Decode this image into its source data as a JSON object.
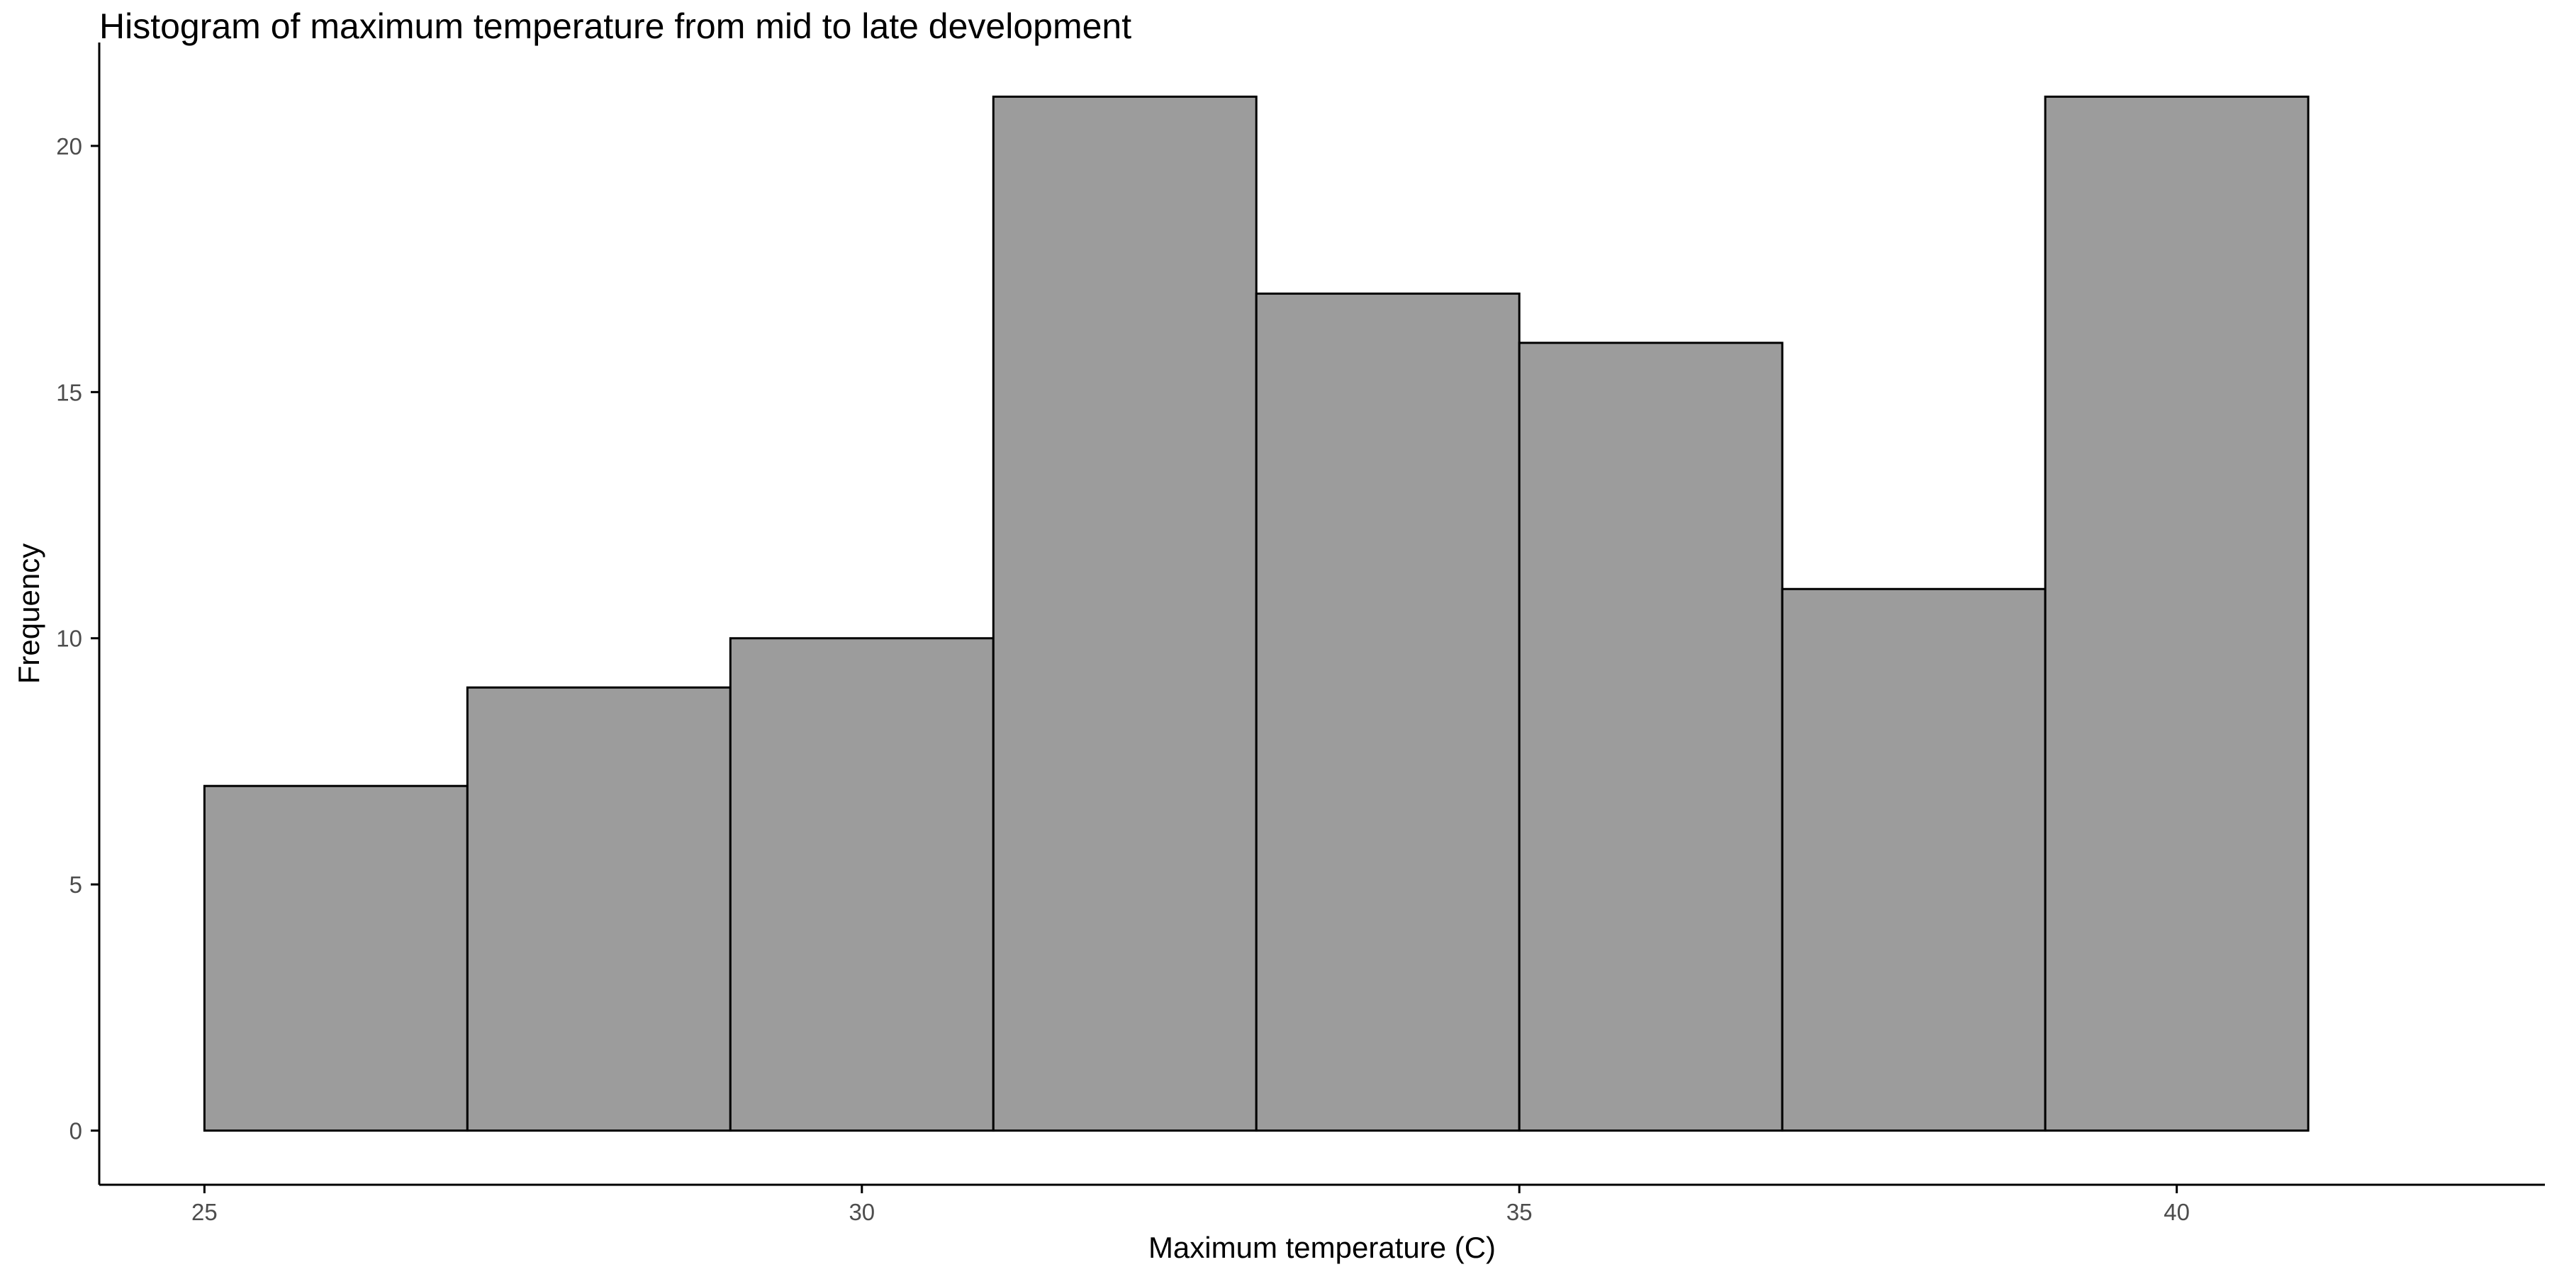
{
  "chart_data": {
    "type": "bar",
    "title": "Histogram of maximum temperature from mid to late development",
    "xlabel": "Maximum temperature (C)",
    "ylabel": "Frequency",
    "bins": [
      {
        "x0": 25,
        "x1": 27,
        "count": 7
      },
      {
        "x0": 27,
        "x1": 29,
        "count": 9
      },
      {
        "x0": 29,
        "x1": 31,
        "count": 10
      },
      {
        "x0": 31,
        "x1": 33,
        "count": 21
      },
      {
        "x0": 33,
        "x1": 35,
        "count": 17
      },
      {
        "x0": 35,
        "x1": 37,
        "count": 16
      },
      {
        "x0": 37,
        "x1": 39,
        "count": 11
      },
      {
        "x0": 39,
        "x1": 41,
        "count": 21
      }
    ],
    "x_ticks": [
      25,
      30,
      35,
      40
    ],
    "y_ticks": [
      0,
      5,
      10,
      15,
      20
    ],
    "xlim": [
      24.2,
      42.8
    ],
    "ylim": [
      -1.1,
      22.1
    ],
    "grid": false,
    "colors": {
      "bar_fill": "#9c9c9c",
      "bar_stroke": "#000000",
      "axis": "#000000",
      "tick_label": "#4d4d4d"
    }
  }
}
